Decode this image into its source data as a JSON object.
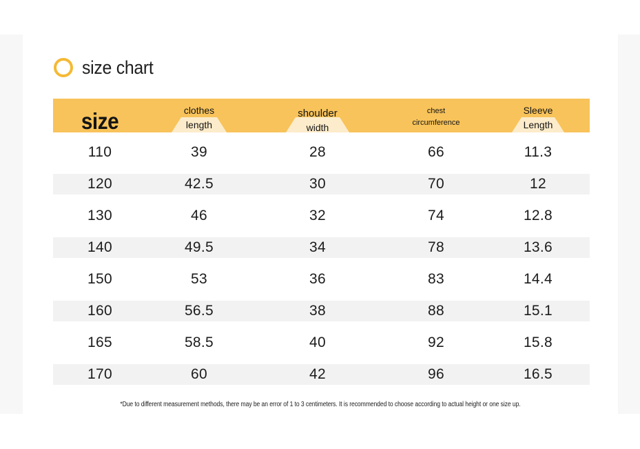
{
  "title": "size chart",
  "accent_color": "#f5b935",
  "header_color": "#f8c35a",
  "icon": "ring-icon",
  "columns": {
    "size": [
      "size"
    ],
    "clothes_length": [
      "clothes",
      "length"
    ],
    "shoulder_width": [
      "shoulder",
      "width"
    ],
    "chest": [
      "chest",
      "circumference"
    ],
    "sleeve": [
      "Sleeve",
      "Length"
    ]
  },
  "rows": [
    [
      "110",
      "39",
      "28",
      "66",
      "11.3"
    ],
    [
      "120",
      "42.5",
      "30",
      "70",
      "12"
    ],
    [
      "130",
      "46",
      "32",
      "74",
      "12.8"
    ],
    [
      "140",
      "49.5",
      "34",
      "78",
      "13.6"
    ],
    [
      "150",
      "53",
      "36",
      "83",
      "14.4"
    ],
    [
      "160",
      "56.5",
      "38",
      "88",
      "15.1"
    ],
    [
      "165",
      "58.5",
      "40",
      "92",
      "15.8"
    ],
    [
      "170",
      "60",
      "42",
      "96",
      "16.5"
    ]
  ],
  "note": "*Due to different measurement methods, there may be an error of 1 to 3 centimeters. It is recommended to choose according to actual height or one size up."
}
